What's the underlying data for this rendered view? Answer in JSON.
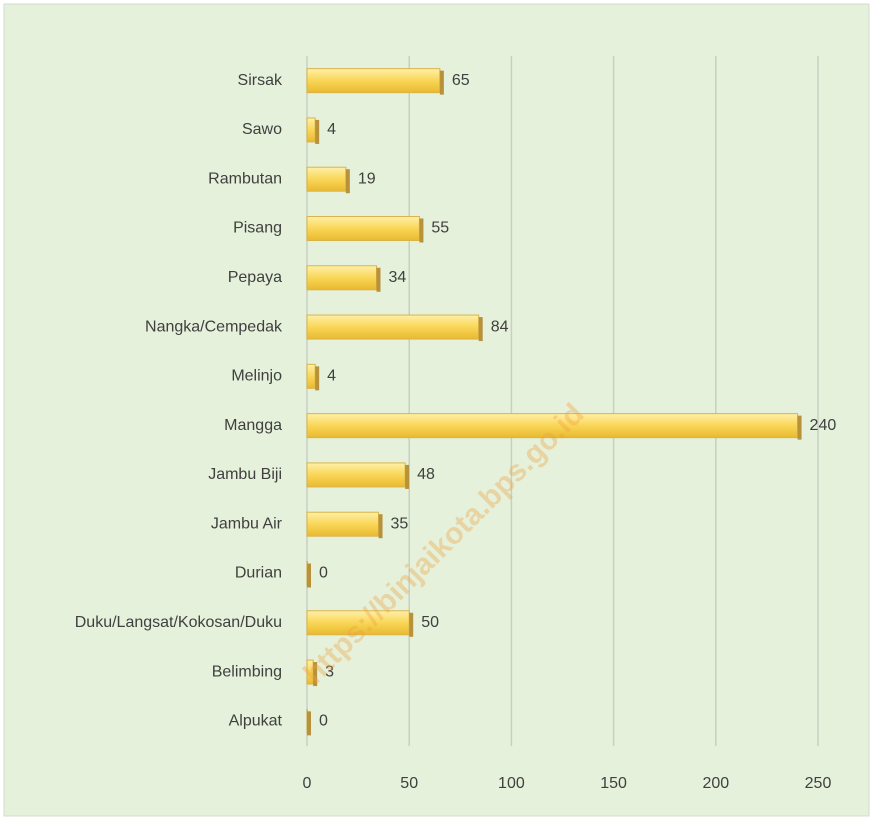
{
  "chart_data": {
    "type": "hbar",
    "categories": [
      "Sirsak",
      "Sawo",
      "Rambutan",
      "Pisang",
      "Pepaya",
      "Nangka/Cempedak",
      "Melinjo",
      "Mangga",
      "Jambu Biji",
      "Jambu Air",
      "Durian",
      "Duku/Langsat/Kokosan/Duku",
      "Belimbing",
      "Alpukat"
    ],
    "values": [
      65,
      4,
      19,
      55,
      34,
      84,
      4,
      240,
      48,
      35,
      0,
      50,
      3,
      0
    ],
    "color": "#f9d657",
    "xlim": [
      0,
      250
    ],
    "xticks": [
      0,
      50,
      100,
      150,
      200,
      250
    ],
    "grid": true,
    "watermark": "https://binjaikota.bps.go.id"
  }
}
